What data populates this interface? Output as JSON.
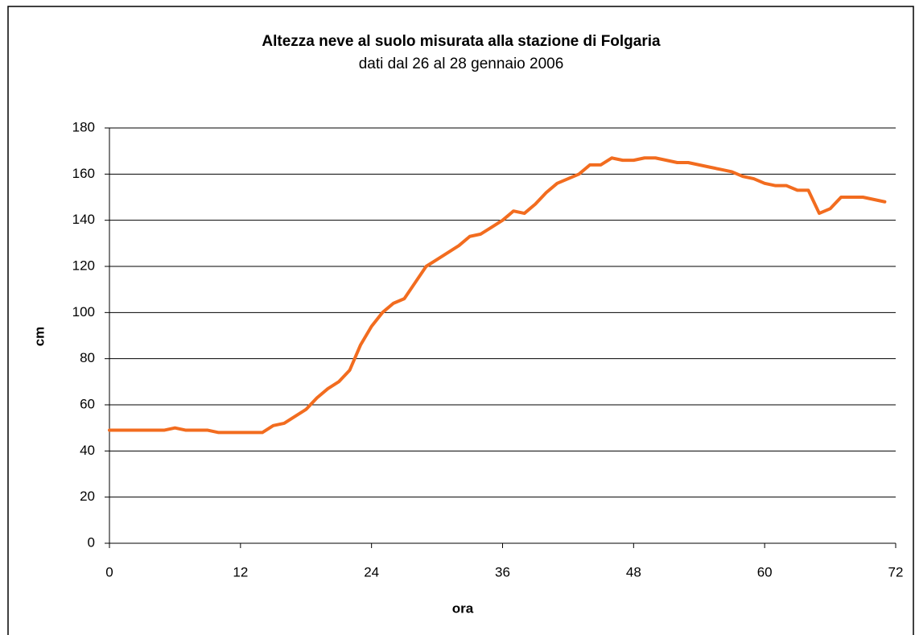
{
  "chart_data": {
    "type": "line",
    "title": "Altezza neve al suolo misurata alla stazione di Folgaria",
    "subtitle": "dati dal 26 al 28 gennaio 2006",
    "x_label": "ora",
    "y_label": "cm",
    "x": [
      0,
      1,
      2,
      3,
      4,
      5,
      6,
      7,
      8,
      9,
      10,
      11,
      12,
      13,
      14,
      15,
      16,
      17,
      18,
      19,
      20,
      21,
      22,
      23,
      24,
      25,
      26,
      27,
      28,
      29,
      30,
      31,
      32,
      33,
      34,
      35,
      36,
      37,
      38,
      39,
      40,
      41,
      42,
      43,
      44,
      45,
      46,
      47,
      48,
      49,
      50,
      51,
      52,
      53,
      54,
      55,
      56,
      57,
      58,
      59,
      60,
      61,
      62,
      63,
      64,
      65,
      66,
      67,
      68,
      69,
      70,
      71
    ],
    "series": [
      {
        "name": "altezza neve",
        "color": "#f26c1f",
        "values": [
          49,
          49,
          49,
          49,
          49,
          49,
          50,
          49,
          49,
          49,
          48,
          48,
          48,
          48,
          48,
          51,
          52,
          55,
          58,
          63,
          67,
          70,
          75,
          86,
          94,
          100,
          104,
          106,
          113,
          120,
          123,
          126,
          129,
          133,
          134,
          137,
          140,
          144,
          143,
          147,
          152,
          156,
          158,
          160,
          164,
          164,
          167,
          166,
          166,
          167,
          167,
          166,
          165,
          165,
          164,
          163,
          162,
          161,
          159,
          158,
          156,
          155,
          155,
          153,
          153,
          143,
          145,
          150,
          150,
          150,
          149,
          148
        ]
      }
    ],
    "xlim": [
      0,
      72
    ],
    "xticks": [
      0,
      12,
      24,
      36,
      48,
      60,
      72
    ],
    "ylim": [
      0,
      180
    ],
    "yticks": [
      0,
      20,
      40,
      60,
      80,
      100,
      120,
      140,
      160,
      180
    ],
    "grid": true
  }
}
